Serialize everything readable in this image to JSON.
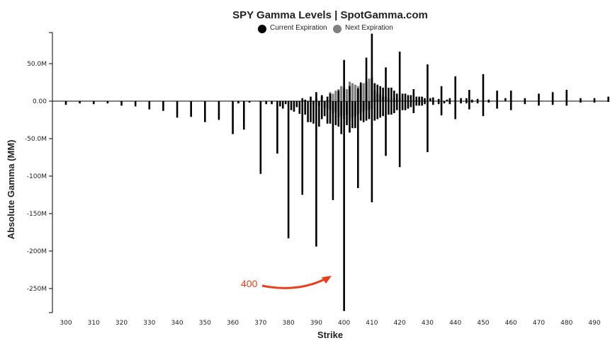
{
  "chart_data": {
    "type": "bar",
    "title": "SPY Gamma Levels | SpotGamma.com",
    "xlabel": "Strike",
    "ylabel": "Absolute Gamma (MM)",
    "xlim": [
      297,
      493
    ],
    "ylim": [
      -280,
      92
    ],
    "x_ticks": [
      300,
      310,
      320,
      330,
      340,
      350,
      360,
      370,
      380,
      390,
      400,
      410,
      420,
      430,
      440,
      450,
      460,
      470,
      480,
      490
    ],
    "y_ticks": [
      {
        "value": 50,
        "label": "50.0M"
      },
      {
        "value": 0,
        "label": "0.00"
      },
      {
        "value": -50,
        "label": "-50.0M"
      },
      {
        "value": -100,
        "label": "-100M"
      },
      {
        "value": -150,
        "label": "-150M"
      },
      {
        "value": -200,
        "label": "-200M"
      },
      {
        "value": -250,
        "label": "-250M"
      }
    ],
    "legend": {
      "placement": "top-center"
    },
    "colors": {
      "current": "#000000",
      "next": "#808080",
      "annotation": "#e8401c"
    },
    "annotation": {
      "text": "400",
      "target_strike": 400
    },
    "series": [
      {
        "name": "Current Expiration",
        "points": [
          [
            300,
            -5
          ],
          [
            305,
            -3
          ],
          [
            310,
            -4
          ],
          [
            315,
            -3
          ],
          [
            320,
            -6
          ],
          [
            325,
            -7
          ],
          [
            330,
            -11
          ],
          [
            335,
            -13
          ],
          [
            340,
            -22
          ],
          [
            345,
            -21
          ],
          [
            350,
            -28
          ],
          [
            355,
            -25
          ],
          [
            360,
            -44
          ],
          [
            362,
            -3
          ],
          [
            364,
            -38
          ],
          [
            366,
            -2
          ],
          [
            370,
            -97
          ],
          [
            372,
            -4
          ],
          [
            374,
            -4
          ],
          [
            376,
            -70
          ],
          [
            377,
            -7
          ],
          [
            378,
            -10
          ],
          [
            379,
            -4
          ],
          [
            380,
            -183
          ],
          [
            381,
            -12
          ],
          [
            382,
            -14
          ],
          [
            383,
            -8
          ],
          [
            384,
            -17
          ],
          [
            385,
            -125
          ],
          [
            386,
            -18
          ],
          [
            387,
            -28
          ],
          [
            388,
            -28
          ],
          [
            389,
            -30
          ],
          [
            390,
            -194
          ],
          [
            391,
            -34
          ],
          [
            392,
            -24
          ],
          [
            393,
            -20
          ],
          [
            394,
            -30
          ],
          [
            395,
            -30
          ],
          [
            396,
            -132
          ],
          [
            397,
            -32
          ],
          [
            398,
            -34
          ],
          [
            399,
            -44
          ],
          [
            400,
            -280
          ],
          [
            401,
            -32
          ],
          [
            402,
            -42
          ],
          [
            403,
            -36
          ],
          [
            404,
            -36
          ],
          [
            405,
            -116
          ],
          [
            406,
            -26
          ],
          [
            407,
            -28
          ],
          [
            408,
            -26
          ],
          [
            409,
            -24
          ],
          [
            410,
            -135
          ],
          [
            411,
            -26
          ],
          [
            412,
            -24
          ],
          [
            413,
            -22
          ],
          [
            414,
            -20
          ],
          [
            415,
            -73
          ],
          [
            416,
            -18
          ],
          [
            417,
            -18
          ],
          [
            418,
            -16
          ],
          [
            419,
            -12
          ],
          [
            420,
            -88
          ],
          [
            421,
            -12
          ],
          [
            422,
            -12
          ],
          [
            423,
            -10
          ],
          [
            424,
            -8
          ],
          [
            425,
            -16
          ],
          [
            426,
            -6
          ],
          [
            427,
            -6
          ],
          [
            428,
            -6
          ],
          [
            429,
            -4
          ],
          [
            430,
            -68
          ],
          [
            432,
            -5
          ],
          [
            434,
            -4
          ],
          [
            435,
            -19
          ],
          [
            436,
            -3
          ],
          [
            438,
            -4
          ],
          [
            440,
            -24
          ],
          [
            442,
            -3
          ],
          [
            444,
            -3
          ],
          [
            445,
            -11
          ],
          [
            446,
            -2
          ],
          [
            448,
            -3
          ],
          [
            450,
            -20
          ],
          [
            452,
            -2
          ],
          [
            455,
            -10
          ],
          [
            460,
            -12
          ],
          [
            465,
            -4
          ],
          [
            470,
            -6
          ],
          [
            475,
            -5
          ],
          [
            480,
            -6
          ],
          [
            485,
            -2
          ],
          [
            490,
            -2
          ],
          [
            495,
            -1
          ],
          [
            395,
            10
          ],
          [
            398,
            14
          ],
          [
            400,
            55
          ],
          [
            402,
            20
          ],
          [
            405,
            17
          ],
          [
            406,
            25
          ],
          [
            408,
            58
          ],
          [
            410,
            90
          ],
          [
            411,
            24
          ],
          [
            412,
            22
          ],
          [
            413,
            20
          ],
          [
            414,
            18
          ],
          [
            415,
            45
          ],
          [
            416,
            18
          ],
          [
            417,
            18
          ],
          [
            418,
            14
          ],
          [
            419,
            10
          ],
          [
            420,
            66
          ],
          [
            421,
            10
          ],
          [
            422,
            10
          ],
          [
            423,
            8
          ],
          [
            424,
            8
          ],
          [
            425,
            16
          ],
          [
            426,
            6
          ],
          [
            427,
            6
          ],
          [
            428,
            6
          ],
          [
            429,
            4
          ],
          [
            430,
            49
          ],
          [
            431,
            4
          ],
          [
            432,
            5
          ],
          [
            434,
            3
          ],
          [
            435,
            20
          ],
          [
            437,
            2
          ],
          [
            438,
            4
          ],
          [
            440,
            33
          ],
          [
            442,
            4
          ],
          [
            444,
            4
          ],
          [
            445,
            15
          ],
          [
            446,
            2
          ],
          [
            448,
            3
          ],
          [
            450,
            36
          ],
          [
            452,
            2
          ],
          [
            455,
            14
          ],
          [
            458,
            4
          ],
          [
            460,
            14
          ],
          [
            465,
            4
          ],
          [
            470,
            10
          ],
          [
            475,
            12
          ],
          [
            480,
            15
          ],
          [
            485,
            4
          ],
          [
            490,
            4
          ],
          [
            495,
            6
          ],
          [
            385,
            4
          ],
          [
            386,
            2
          ],
          [
            388,
            6
          ],
          [
            390,
            12
          ],
          [
            392,
            8
          ],
          [
            394,
            6
          ]
        ]
      },
      {
        "name": "Next Expiration",
        "points": [
          [
            395,
            -12
          ],
          [
            396,
            -16
          ],
          [
            397,
            -14
          ],
          [
            398,
            -22
          ],
          [
            399,
            -20
          ],
          [
            400,
            -24
          ],
          [
            401,
            -18
          ],
          [
            402,
            -26
          ],
          [
            403,
            -22
          ],
          [
            404,
            -20
          ],
          [
            405,
            -18
          ],
          [
            406,
            -16
          ],
          [
            407,
            -14
          ],
          [
            408,
            -12
          ],
          [
            409,
            -12
          ],
          [
            410,
            -10
          ],
          [
            395,
            12
          ],
          [
            396,
            10
          ],
          [
            397,
            14
          ],
          [
            398,
            16
          ],
          [
            399,
            20
          ],
          [
            400,
            18
          ],
          [
            401,
            16
          ],
          [
            402,
            26
          ],
          [
            403,
            24
          ],
          [
            404,
            22
          ],
          [
            405,
            20
          ],
          [
            406,
            22
          ],
          [
            407,
            24
          ],
          [
            408,
            26
          ],
          [
            409,
            30
          ],
          [
            410,
            32
          ],
          [
            411,
            14
          ],
          [
            412,
            10
          ],
          [
            413,
            8
          ],
          [
            414,
            6
          ],
          [
            415,
            6
          ],
          [
            416,
            4
          ],
          [
            418,
            4
          ],
          [
            420,
            4
          ],
          [
            392,
            6
          ],
          [
            393,
            -8
          ],
          [
            394,
            -10
          ],
          [
            391,
            -6
          ],
          [
            390,
            4
          ],
          [
            389,
            -4
          ]
        ]
      }
    ]
  }
}
